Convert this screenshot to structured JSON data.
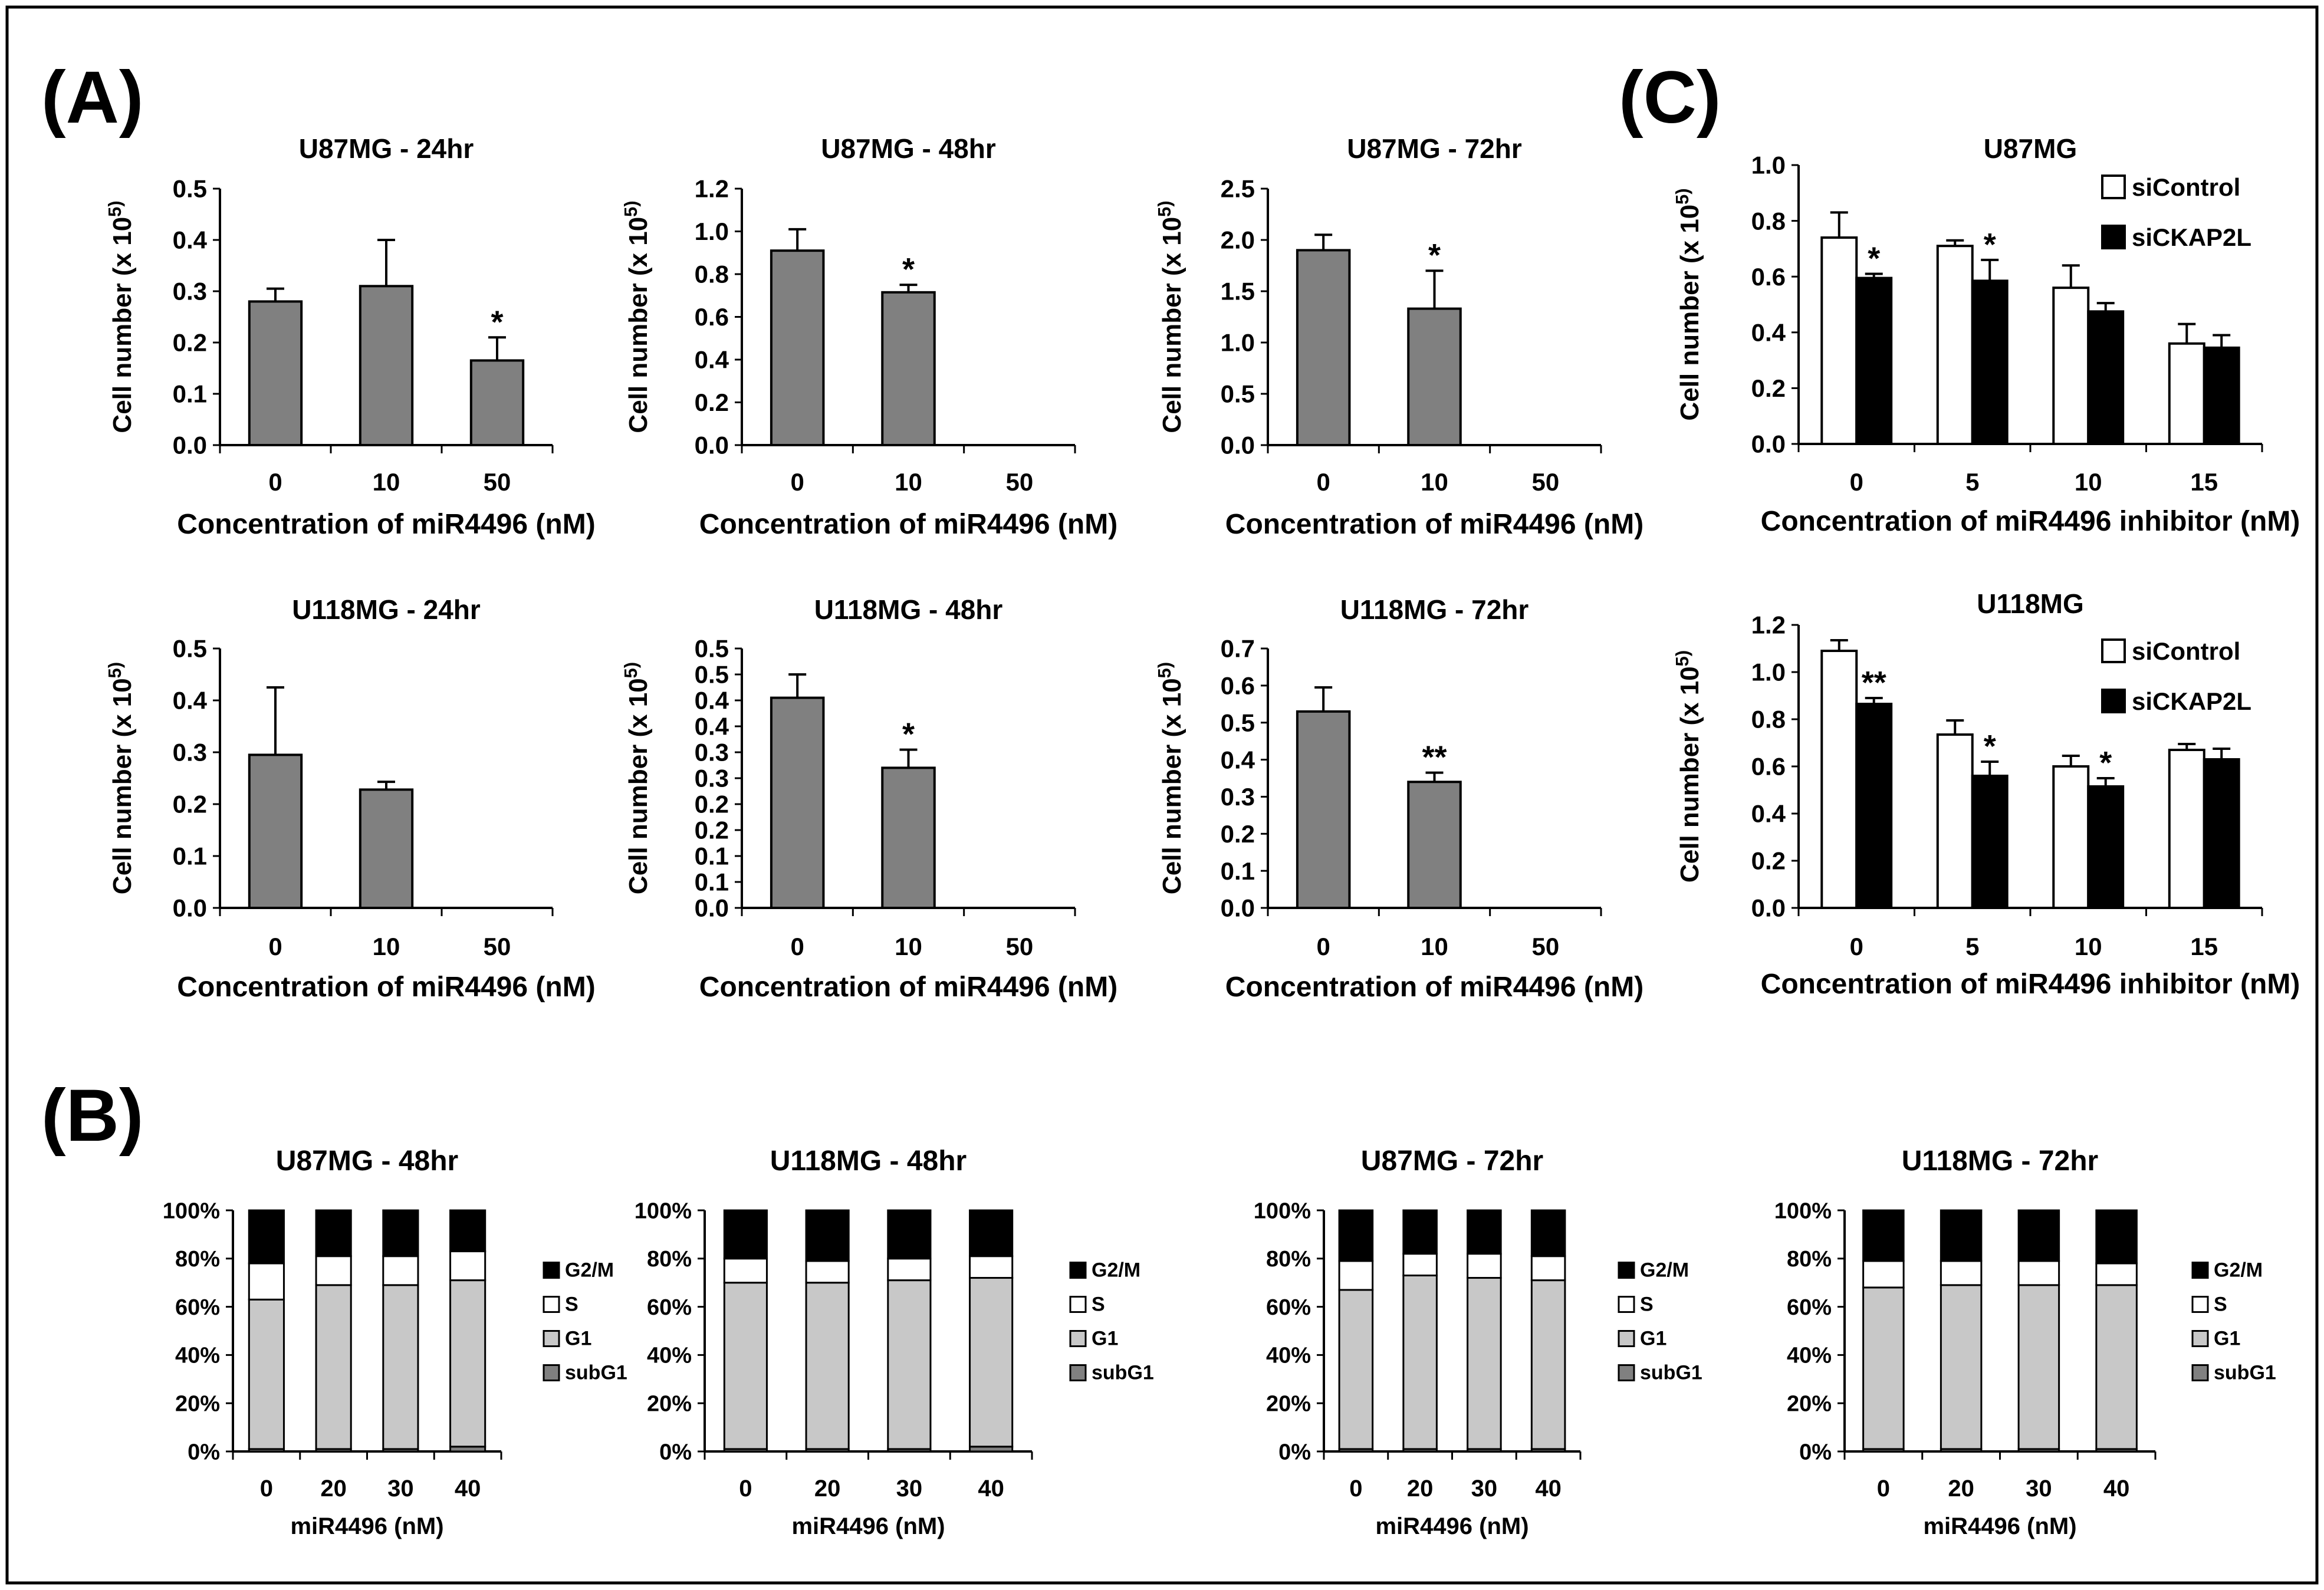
{
  "panel_labels": [
    "(A)",
    "(B)",
    "(C)"
  ],
  "colors": {
    "bar_gray": "#808080",
    "bar_black": "#000000",
    "bar_white": "#ffffff",
    "seg_g1": "#c8c8c8",
    "seg_subg1": "#808080",
    "axis": "#000000"
  },
  "chart_data": [
    {
      "id": "A1",
      "type": "bar",
      "title": "U87MG - 24hr",
      "categories": [
        "0",
        "10",
        "50"
      ],
      "values": [
        0.28,
        0.31,
        0.165
      ],
      "errors": [
        0.025,
        0.09,
        0.045
      ],
      "significance": [
        "",
        "",
        "*"
      ],
      "ylim": [
        0,
        0.5
      ],
      "yticks": [
        "0.0",
        "0.1",
        "0.2",
        "0.3",
        "0.4",
        "0.5"
      ],
      "ylabel": "Cell number (x 10^5)",
      "xlabel": "Concentration of miR4496 (nM)"
    },
    {
      "id": "A2",
      "type": "bar",
      "title": "U87MG - 48hr",
      "categories": [
        "0",
        "10",
        "50"
      ],
      "values": [
        0.91,
        0.715,
        null
      ],
      "errors": [
        0.1,
        0.035,
        null
      ],
      "significance": [
        "",
        "*",
        ""
      ],
      "ylim": [
        0,
        1.2
      ],
      "yticks": [
        "0.0",
        "0.2",
        "0.4",
        "0.6",
        "0.8",
        "1.0",
        "1.2"
      ],
      "ylabel": "Cell number (x 10^5)",
      "xlabel": "Concentration of miR4496 (nM)"
    },
    {
      "id": "A3",
      "type": "bar",
      "title": "U87MG - 72hr",
      "categories": [
        "0",
        "10",
        "50"
      ],
      "values": [
        1.9,
        1.33,
        null
      ],
      "errors": [
        0.15,
        0.37,
        null
      ],
      "significance": [
        "",
        "*",
        ""
      ],
      "ylim": [
        0,
        2.5
      ],
      "yticks": [
        "0.0",
        "0.5",
        "1.0",
        "1.5",
        "2.0",
        "2.5"
      ],
      "ylabel": "Cell number (x 10^5)",
      "xlabel": "Concentration of miR4496 (nM)"
    },
    {
      "id": "A4",
      "type": "bar",
      "title": "U118MG - 24hr",
      "categories": [
        "0",
        "10",
        "50"
      ],
      "values": [
        0.295,
        0.228,
        null
      ],
      "errors": [
        0.13,
        0.015,
        null
      ],
      "significance": [
        "",
        "",
        ""
      ],
      "ylim": [
        0,
        0.5
      ],
      "yticks": [
        "0.0",
        "0.1",
        "0.2",
        "0.3",
        "0.4",
        "0.5"
      ],
      "ylabel": "Cell number (x 10^5)",
      "xlabel": "Concentration of miR4496 (nM)"
    },
    {
      "id": "A5",
      "type": "bar",
      "title": "U118MG - 48hr",
      "categories": [
        "0",
        "10",
        "50"
      ],
      "values": [
        0.405,
        0.27,
        null
      ],
      "errors": [
        0.045,
        0.035,
        null
      ],
      "significance": [
        "",
        "*",
        ""
      ],
      "ylim": [
        0,
        0.5
      ],
      "yticks": [
        "0.0",
        "0.1",
        "0.1",
        "0.2",
        "0.2",
        "0.3",
        "0.3",
        "0.4",
        "0.4",
        "0.5",
        "0.5"
      ],
      "ylabel": "Cell number (x 10^5)",
      "xlabel": "Concentration of miR4496 (nM)"
    },
    {
      "id": "A6",
      "type": "bar",
      "title": "U118MG - 72hr",
      "categories": [
        "0",
        "10",
        "50"
      ],
      "values": [
        0.53,
        0.34,
        null
      ],
      "errors": [
        0.065,
        0.025,
        null
      ],
      "significance": [
        "",
        "**",
        ""
      ],
      "ylim": [
        0,
        0.7
      ],
      "yticks": [
        "0.0",
        "0.1",
        "0.2",
        "0.3",
        "0.4",
        "0.5",
        "0.6",
        "0.7"
      ],
      "ylabel": "Cell number (x 10^5)",
      "xlabel": "Concentration of miR4496 (nM)"
    },
    {
      "id": "C1",
      "type": "bar",
      "title": "U87MG",
      "categories": [
        "0",
        "5",
        "10",
        "15"
      ],
      "series": [
        {
          "name": "siControl",
          "values": [
            0.74,
            0.71,
            0.56,
            0.36
          ],
          "errors": [
            0.09,
            0.02,
            0.08,
            0.07
          ],
          "significance": [
            "",
            "",
            "",
            ""
          ]
        },
        {
          "name": "siCKAP2L",
          "values": [
            0.595,
            0.585,
            0.475,
            0.345
          ],
          "errors": [
            0.015,
            0.075,
            0.03,
            0.045
          ],
          "significance": [
            "*",
            "*",
            "",
            ""
          ]
        }
      ],
      "ylim": [
        0,
        1.0
      ],
      "yticks": [
        "0.0",
        "0.2",
        "0.4",
        "0.6",
        "0.8",
        "1.0"
      ],
      "ylabel": "Cell number (x 10^5)",
      "xlabel": "Concentration of miR4496 inhibitor (nM)",
      "legend": "top-right"
    },
    {
      "id": "C2",
      "type": "bar",
      "title": "U118MG",
      "categories": [
        "0",
        "5",
        "10",
        "15"
      ],
      "series": [
        {
          "name": "siControl",
          "values": [
            1.09,
            0.735,
            0.6,
            0.67
          ],
          "errors": [
            0.045,
            0.06,
            0.045,
            0.025
          ],
          "significance": [
            "",
            "",
            "",
            ""
          ]
        },
        {
          "name": "siCKAP2L",
          "values": [
            0.865,
            0.56,
            0.515,
            0.63
          ],
          "errors": [
            0.025,
            0.06,
            0.035,
            0.045
          ],
          "significance": [
            "**",
            "*",
            "*",
            ""
          ]
        }
      ],
      "ylim": [
        0,
        1.2
      ],
      "yticks": [
        "0.0",
        "0.2",
        "0.4",
        "0.6",
        "0.8",
        "1.0",
        "1.2"
      ],
      "ylabel": "Cell number (x 10^5)",
      "xlabel": "Concentration of miR4496 inhibitor (nM)",
      "legend": "top-right"
    },
    {
      "id": "B1",
      "type": "bar",
      "stacked": true,
      "title": "U87MG - 48hr",
      "categories": [
        "0",
        "20",
        "30",
        "40"
      ],
      "series": [
        {
          "name": "subG1",
          "values": [
            1,
            1,
            1,
            2
          ]
        },
        {
          "name": "G1",
          "values": [
            62,
            68,
            68,
            69
          ]
        },
        {
          "name": "S",
          "values": [
            15,
            12,
            12,
            12
          ]
        },
        {
          "name": "G2/M",
          "values": [
            22,
            19,
            19,
            17
          ]
        }
      ],
      "ylim": [
        0,
        100
      ],
      "yticks": [
        "0%",
        "20%",
        "40%",
        "60%",
        "80%",
        "100%"
      ],
      "xlabel": "miR4496 (nM)",
      "legend_order": [
        "G2/M",
        "S",
        "G1",
        "subG1"
      ]
    },
    {
      "id": "B2",
      "type": "bar",
      "stacked": true,
      "title": "U118MG - 48hr",
      "categories": [
        "0",
        "20",
        "30",
        "40"
      ],
      "series": [
        {
          "name": "subG1",
          "values": [
            1,
            1,
            1,
            2
          ]
        },
        {
          "name": "G1",
          "values": [
            69,
            69,
            70,
            70
          ]
        },
        {
          "name": "S",
          "values": [
            10,
            9,
            9,
            9
          ]
        },
        {
          "name": "G2/M",
          "values": [
            20,
            21,
            20,
            19
          ]
        }
      ],
      "ylim": [
        0,
        100
      ],
      "yticks": [
        "0%",
        "20%",
        "40%",
        "60%",
        "80%",
        "100%"
      ],
      "xlabel": "miR4496 (nM)",
      "legend_order": [
        "G2/M",
        "S",
        "G1",
        "subG1"
      ]
    },
    {
      "id": "B3",
      "type": "bar",
      "stacked": true,
      "title": "U87MG - 72hr",
      "categories": [
        "0",
        "20",
        "30",
        "40"
      ],
      "series": [
        {
          "name": "subG1",
          "values": [
            1,
            1,
            1,
            1
          ]
        },
        {
          "name": "G1",
          "values": [
            66,
            72,
            71,
            70
          ]
        },
        {
          "name": "S",
          "values": [
            12,
            9,
            10,
            10
          ]
        },
        {
          "name": "G2/M",
          "values": [
            21,
            18,
            18,
            19
          ]
        }
      ],
      "ylim": [
        0,
        100
      ],
      "yticks": [
        "0%",
        "20%",
        "40%",
        "60%",
        "80%",
        "100%"
      ],
      "xlabel": "miR4496 (nM)",
      "legend_order": [
        "G2/M",
        "S",
        "G1",
        "subG1"
      ]
    },
    {
      "id": "B4",
      "type": "bar",
      "stacked": true,
      "title": "U118MG - 72hr",
      "categories": [
        "0",
        "20",
        "30",
        "40"
      ],
      "series": [
        {
          "name": "subG1",
          "values": [
            1,
            1,
            1,
            1
          ]
        },
        {
          "name": "G1",
          "values": [
            67,
            68,
            68,
            68
          ]
        },
        {
          "name": "S",
          "values": [
            11,
            10,
            10,
            9
          ]
        },
        {
          "name": "G2/M",
          "values": [
            21,
            21,
            21,
            22
          ]
        }
      ],
      "ylim": [
        0,
        100
      ],
      "yticks": [
        "0%",
        "20%",
        "40%",
        "60%",
        "80%",
        "100%"
      ],
      "xlabel": "miR4496 (nM)",
      "legend_order": [
        "G2/M",
        "S",
        "G1",
        "subG1"
      ]
    }
  ]
}
